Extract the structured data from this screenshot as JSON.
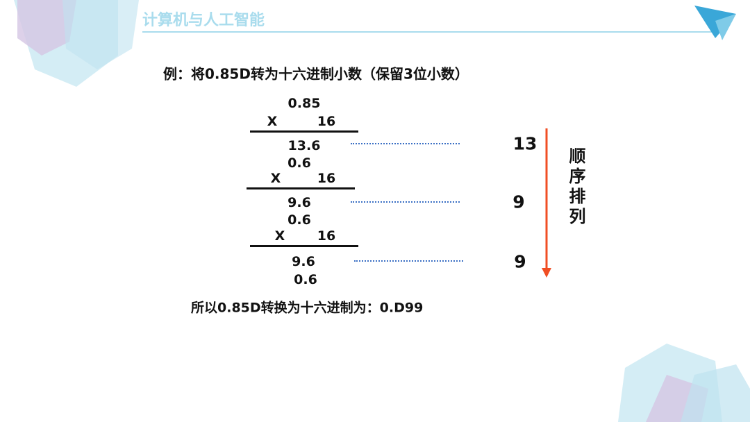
{
  "header": {
    "title": "计算机与人工智能"
  },
  "example": "例：将0.85D转为十六进制小数（保留3位小数）",
  "steps": [
    {
      "multiplicand": "0.85",
      "operator": "X",
      "multiplier": "16",
      "product": "13.6",
      "digit": "13"
    },
    {
      "multiplicand": "0.6",
      "operator": "X",
      "multiplier": "16",
      "product": "9.6",
      "digit": "9"
    },
    {
      "multiplicand": "0.6",
      "operator": "X",
      "multiplier": "16",
      "product": "9.6",
      "digit": "9"
    }
  ],
  "remainder": "0.6",
  "order_label": "顺序排列",
  "conclusion": "所以0.85D转换为十六进制为：0.D99"
}
